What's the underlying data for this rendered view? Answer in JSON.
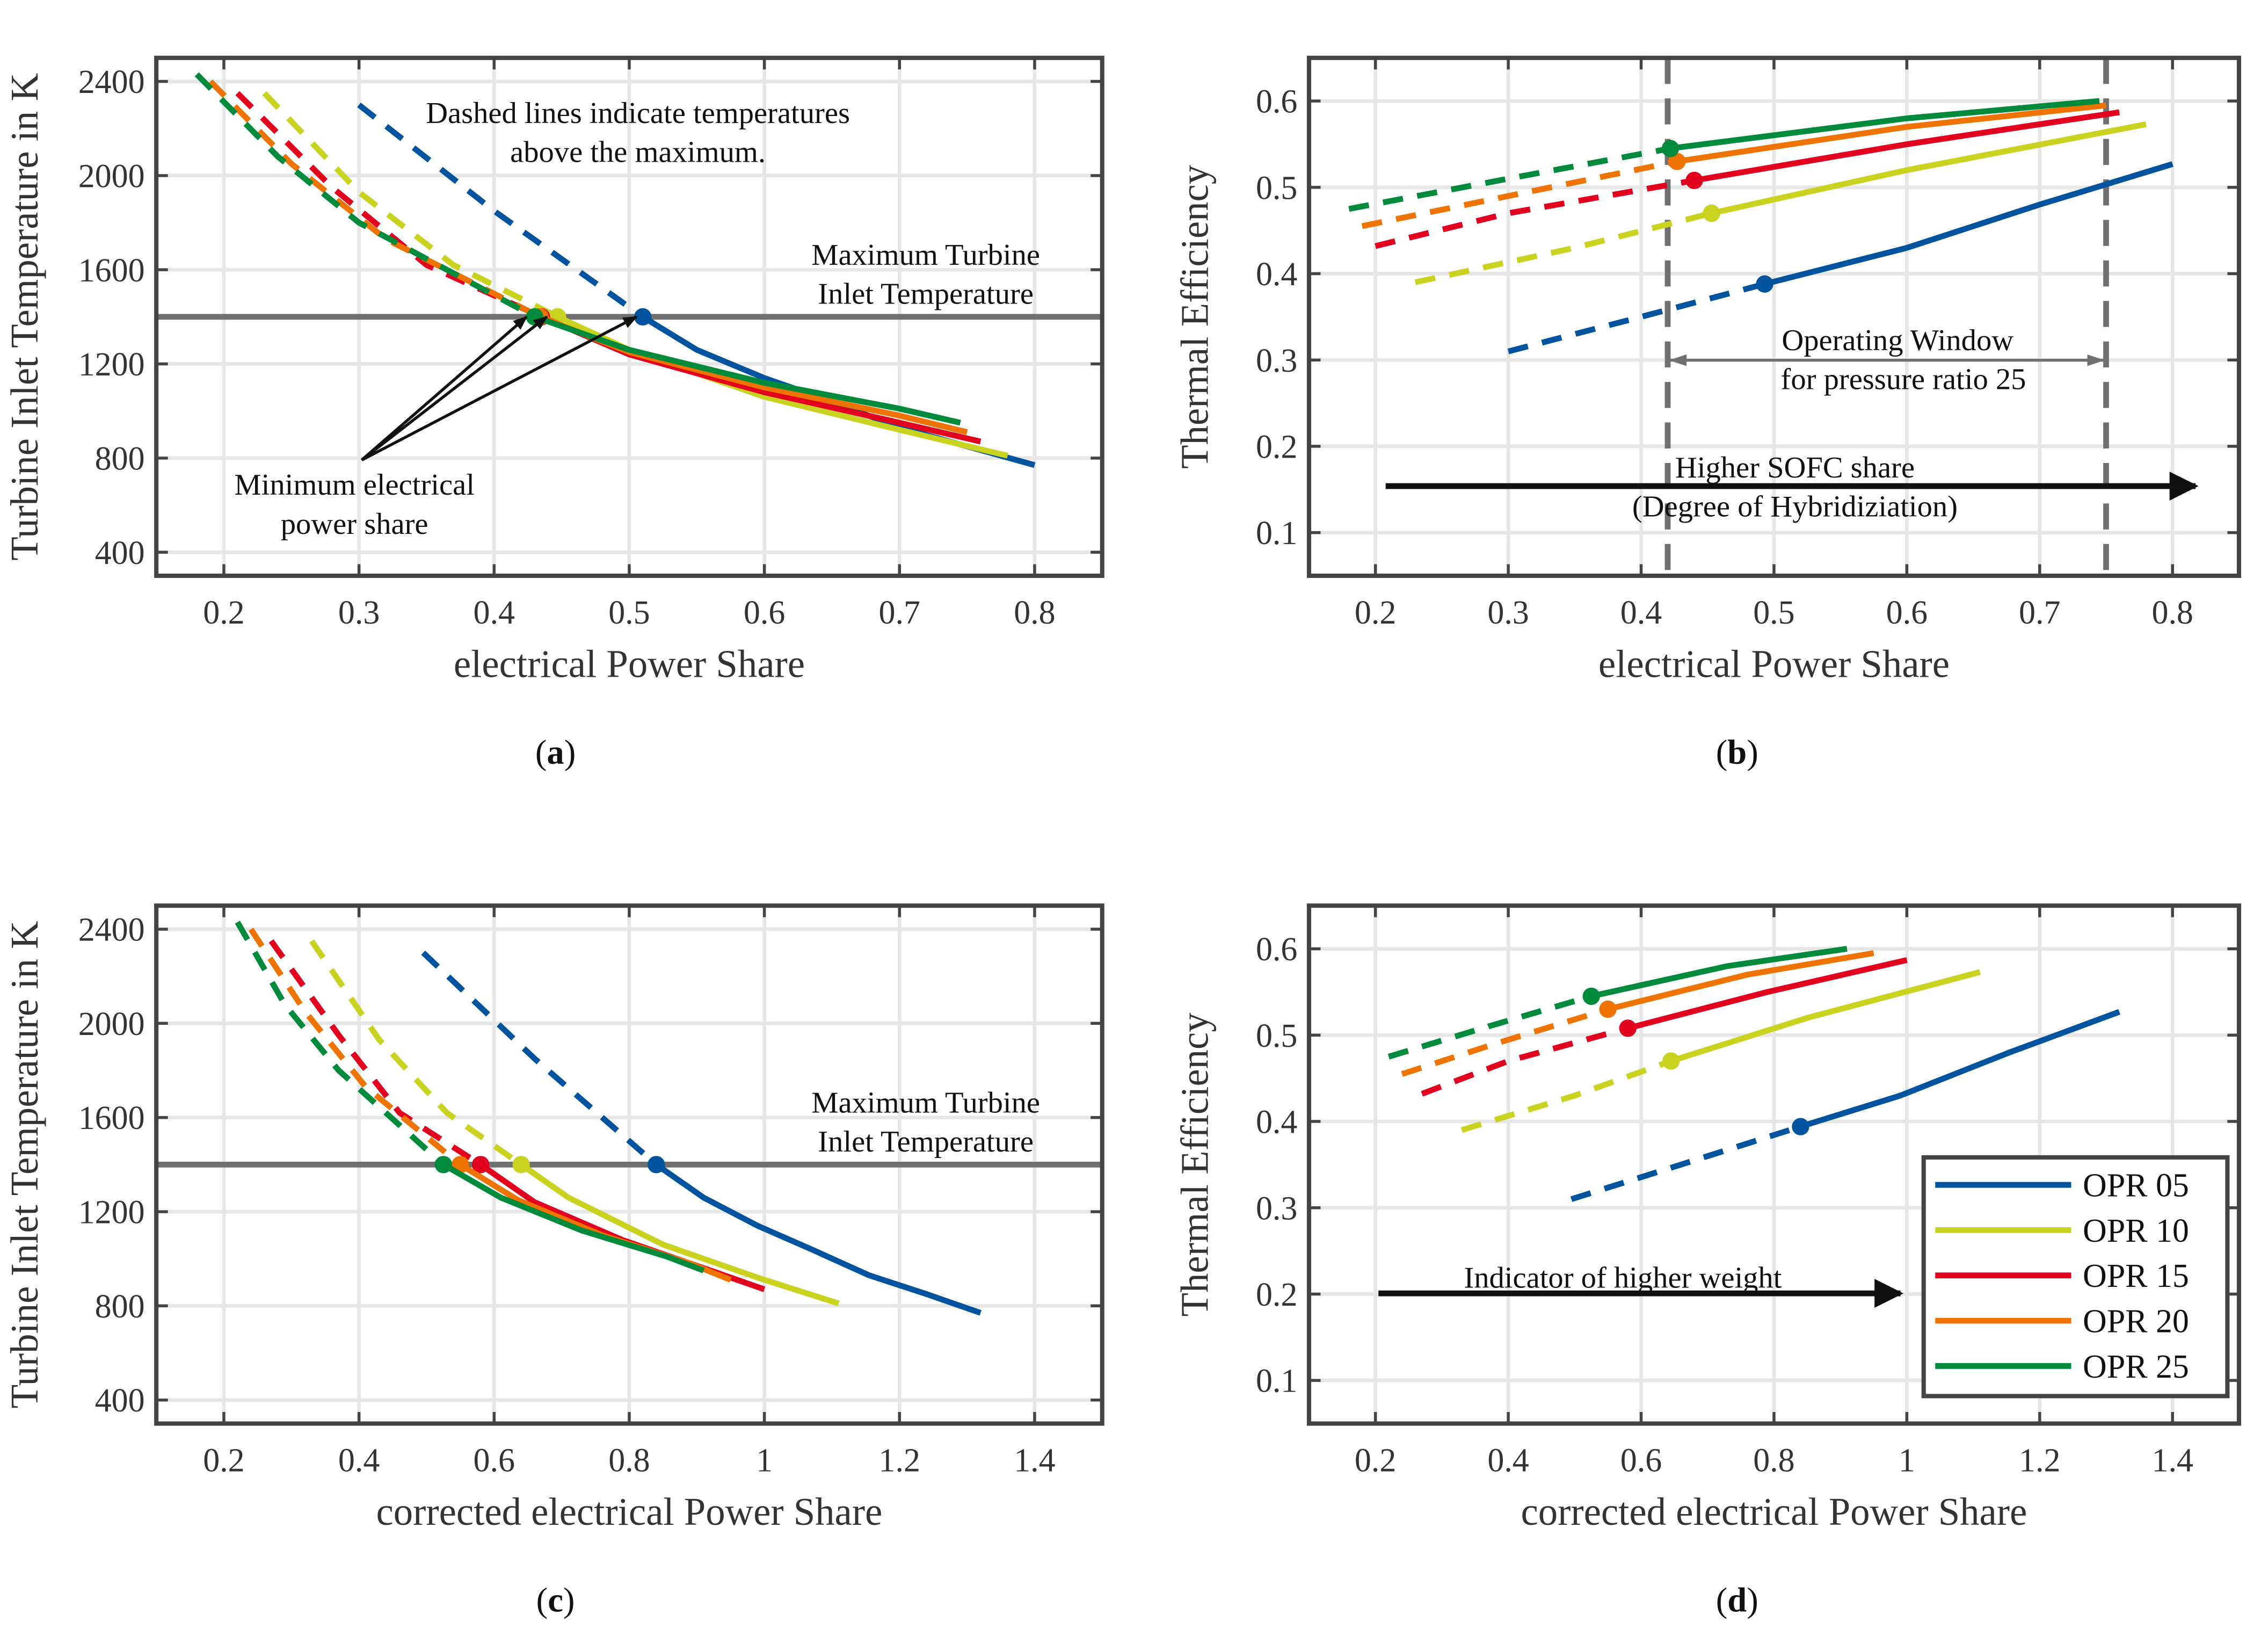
{
  "colors": {
    "OPR 05": "#00549f",
    "OPR 10": "#c9d21e",
    "OPR 15": "#e3001f",
    "OPR 20": "#ef7300",
    "OPR 25": "#008b3c",
    "axis": "#444444",
    "grid": "#e6e6e6",
    "limit": "#707070"
  },
  "chart_data": [
    {
      "type": "line",
      "caption": "a",
      "xlabel": "electrical Power Share",
      "ylabel": "Turbine Inlet Temperature in K",
      "xlim": [
        0.15,
        0.85
      ],
      "ylim": [
        300,
        2500
      ],
      "xticks": [
        "0.2",
        "0.3",
        "0.4",
        "0.5",
        "0.6",
        "0.7",
        "0.8"
      ],
      "yticks": [
        "400",
        "800",
        "1200",
        "1600",
        "2000",
        "2400"
      ],
      "grid": true,
      "max_temperature": 1400,
      "annotations": {
        "dashed_note": [
          "Dashed lines indicate temperatures",
          "above the maximum."
        ],
        "max_line": [
          "Maximum Turbine",
          "Inlet Temperature"
        ],
        "min_share": [
          "Minimum electrical",
          "power share"
        ]
      },
      "series": [
        {
          "name": "OPR 05",
          "marker_index": 2,
          "points": [
            [
              0.3,
              2300
            ],
            [
              0.4,
              1850
            ],
            [
              0.51,
              1400
            ],
            [
              0.55,
              1260
            ],
            [
              0.6,
              1140
            ],
            [
              0.65,
              1040
            ],
            [
              0.7,
              930
            ],
            [
              0.75,
              850
            ],
            [
              0.8,
              770
            ]
          ]
        },
        {
          "name": "OPR 10",
          "marker_index": 3,
          "points": [
            [
              0.23,
              2350
            ],
            [
              0.3,
              1930
            ],
            [
              0.37,
              1620
            ],
            [
              0.447,
              1400
            ],
            [
              0.5,
              1260
            ],
            [
              0.6,
              1060
            ],
            [
              0.7,
              920
            ],
            [
              0.78,
              810
            ]
          ]
        },
        {
          "name": "OPR 15",
          "marker_index": 3,
          "points": [
            [
              0.21,
              2350
            ],
            [
              0.28,
              1950
            ],
            [
              0.35,
              1620
            ],
            [
              0.435,
              1400
            ],
            [
              0.5,
              1240
            ],
            [
              0.6,
              1080
            ],
            [
              0.7,
              950
            ],
            [
              0.76,
              870
            ]
          ]
        },
        {
          "name": "OPR 20",
          "marker_index": 3,
          "points": [
            [
              0.19,
              2400
            ],
            [
              0.25,
              2050
            ],
            [
              0.32,
              1730
            ],
            [
              0.434,
              1400
            ],
            [
              0.5,
              1250
            ],
            [
              0.6,
              1100
            ],
            [
              0.7,
              980
            ],
            [
              0.75,
              910
            ]
          ]
        },
        {
          "name": "OPR 25",
          "marker_index": 3,
          "points": [
            [
              0.18,
              2430
            ],
            [
              0.24,
              2080
            ],
            [
              0.3,
              1800
            ],
            [
              0.43,
              1400
            ],
            [
              0.5,
              1260
            ],
            [
              0.6,
              1120
            ],
            [
              0.7,
              1010
            ],
            [
              0.745,
              950
            ]
          ]
        }
      ]
    },
    {
      "type": "line",
      "caption": "b",
      "xlabel": "electrical Power Share",
      "ylabel": "Thermal Efficiency",
      "xlim": [
        0.15,
        0.85
      ],
      "ylim": [
        0.05,
        0.65
      ],
      "xticks": [
        "0.2",
        "0.3",
        "0.4",
        "0.5",
        "0.6",
        "0.7",
        "0.8"
      ],
      "yticks": [
        "0.1",
        "0.2",
        "0.3",
        "0.4",
        "0.5",
        "0.6"
      ],
      "grid": true,
      "operating_window": [
        0.42,
        0.75
      ],
      "annotations": {
        "window": [
          "Operating Window",
          "for pressure ratio 25"
        ],
        "sofc": [
          "Higher SOFC share",
          "(Degree of Hybridiziation)"
        ]
      },
      "series": [
        {
          "name": "OPR 05",
          "marker_index": 2,
          "points": [
            [
              0.3,
              0.31
            ],
            [
              0.4,
              0.35
            ],
            [
              0.493,
              0.388
            ],
            [
              0.6,
              0.43
            ],
            [
              0.7,
              0.48
            ],
            [
              0.8,
              0.527
            ]
          ]
        },
        {
          "name": "OPR 10",
          "marker_index": 2,
          "points": [
            [
              0.23,
              0.39
            ],
            [
              0.35,
              0.43
            ],
            [
              0.453,
              0.47
            ],
            [
              0.6,
              0.52
            ],
            [
              0.78,
              0.573
            ]
          ]
        },
        {
          "name": "OPR 15",
          "marker_index": 2,
          "points": [
            [
              0.2,
              0.432
            ],
            [
              0.3,
              0.47
            ],
            [
              0.44,
              0.508
            ],
            [
              0.6,
              0.55
            ],
            [
              0.76,
              0.587
            ]
          ]
        },
        {
          "name": "OPR 20",
          "marker_index": 2,
          "points": [
            [
              0.19,
              0.455
            ],
            [
              0.3,
              0.49
            ],
            [
              0.427,
              0.53
            ],
            [
              0.6,
              0.57
            ],
            [
              0.75,
              0.595
            ]
          ]
        },
        {
          "name": "OPR 25",
          "marker_index": 2,
          "points": [
            [
              0.18,
              0.475
            ],
            [
              0.3,
              0.51
            ],
            [
              0.422,
              0.545
            ],
            [
              0.6,
              0.58
            ],
            [
              0.745,
              0.6
            ]
          ]
        }
      ]
    },
    {
      "type": "line",
      "caption": "c",
      "xlabel": "corrected electrical Power Share",
      "ylabel": "Turbine Inlet Temperature in K",
      "xlim": [
        0.1,
        1.5
      ],
      "ylim": [
        300,
        2500
      ],
      "xticks": [
        "0.2",
        "0.4",
        "0.6",
        "0.8",
        "1",
        "1.2",
        "1.4"
      ],
      "yticks": [
        "400",
        "800",
        "1200",
        "1600",
        "2000",
        "2400"
      ],
      "grid": true,
      "max_temperature": 1400,
      "annotations": {
        "max_line": [
          "Maximum Turbine",
          "Inlet Temperature"
        ]
      },
      "series": [
        {
          "name": "OPR 05",
          "marker_index": 2,
          "points": [
            [
              0.495,
              2300
            ],
            [
              0.66,
              1850
            ],
            [
              0.84,
              1400
            ],
            [
              0.91,
              1260
            ],
            [
              0.99,
              1140
            ],
            [
              1.07,
              1040
            ],
            [
              1.155,
              930
            ],
            [
              1.24,
              850
            ],
            [
              1.32,
              770
            ]
          ]
        },
        {
          "name": "OPR 10",
          "marker_index": 3,
          "points": [
            [
              0.33,
              2350
            ],
            [
              0.43,
              1930
            ],
            [
              0.53,
              1620
            ],
            [
              0.64,
              1400
            ],
            [
              0.71,
              1260
            ],
            [
              0.85,
              1060
            ],
            [
              0.99,
              920
            ],
            [
              1.11,
              810
            ]
          ]
        },
        {
          "name": "OPR 15",
          "marker_index": 3,
          "points": [
            [
              0.27,
              2350
            ],
            [
              0.37,
              1950
            ],
            [
              0.46,
              1620
            ],
            [
              0.58,
              1400
            ],
            [
              0.66,
              1240
            ],
            [
              0.79,
              1080
            ],
            [
              0.92,
              950
            ],
            [
              1.0,
              870
            ]
          ]
        },
        {
          "name": "OPR 20",
          "marker_index": 3,
          "points": [
            [
              0.24,
              2400
            ],
            [
              0.32,
              2050
            ],
            [
              0.41,
              1730
            ],
            [
              0.55,
              1400
            ],
            [
              0.635,
              1250
            ],
            [
              0.76,
              1100
            ],
            [
              0.89,
              980
            ],
            [
              0.95,
              910
            ]
          ]
        },
        {
          "name": "OPR 25",
          "marker_index": 3,
          "points": [
            [
              0.22,
              2430
            ],
            [
              0.29,
              2080
            ],
            [
              0.37,
              1800
            ],
            [
              0.525,
              1400
            ],
            [
              0.61,
              1260
            ],
            [
              0.73,
              1120
            ],
            [
              0.855,
              1010
            ],
            [
              0.91,
              950
            ]
          ]
        }
      ]
    },
    {
      "type": "line",
      "caption": "d",
      "xlabel": "corrected electrical Power Share",
      "ylabel": "Thermal Efficiency",
      "xlim": [
        0.1,
        1.5
      ],
      "ylim": [
        0.05,
        0.65
      ],
      "xticks": [
        "0.2",
        "0.4",
        "0.6",
        "0.8",
        "1",
        "1.2",
        "1.4"
      ],
      "yticks": [
        "0.1",
        "0.2",
        "0.3",
        "0.4",
        "0.5",
        "0.6"
      ],
      "grid": true,
      "legend_position": "bottom-right",
      "legend": [
        "OPR 05",
        "OPR 10",
        "OPR 15",
        "OPR 20",
        "OPR 25"
      ],
      "annotations": {
        "weight": [
          "Indicator of higher weight"
        ]
      },
      "series": [
        {
          "name": "OPR 05",
          "marker_index": 2,
          "points": [
            [
              0.495,
              0.31
            ],
            [
              0.66,
              0.35
            ],
            [
              0.84,
              0.394
            ],
            [
              0.99,
              0.43
            ],
            [
              1.155,
              0.48
            ],
            [
              1.32,
              0.527
            ]
          ]
        },
        {
          "name": "OPR 10",
          "marker_index": 2,
          "points": [
            [
              0.33,
              0.39
            ],
            [
              0.5,
              0.43
            ],
            [
              0.645,
              0.47
            ],
            [
              0.85,
              0.52
            ],
            [
              1.11,
              0.573
            ]
          ]
        },
        {
          "name": "OPR 15",
          "marker_index": 2,
          "points": [
            [
              0.27,
              0.432
            ],
            [
              0.4,
              0.47
            ],
            [
              0.58,
              0.508
            ],
            [
              0.79,
              0.55
            ],
            [
              1.0,
              0.587
            ]
          ]
        },
        {
          "name": "OPR 20",
          "marker_index": 2,
          "points": [
            [
              0.24,
              0.455
            ],
            [
              0.38,
              0.49
            ],
            [
              0.55,
              0.53
            ],
            [
              0.76,
              0.57
            ],
            [
              0.95,
              0.595
            ]
          ]
        },
        {
          "name": "OPR 25",
          "marker_index": 2,
          "points": [
            [
              0.22,
              0.475
            ],
            [
              0.37,
              0.51
            ],
            [
              0.525,
              0.545
            ],
            [
              0.73,
              0.58
            ],
            [
              0.91,
              0.6
            ]
          ]
        }
      ]
    }
  ]
}
